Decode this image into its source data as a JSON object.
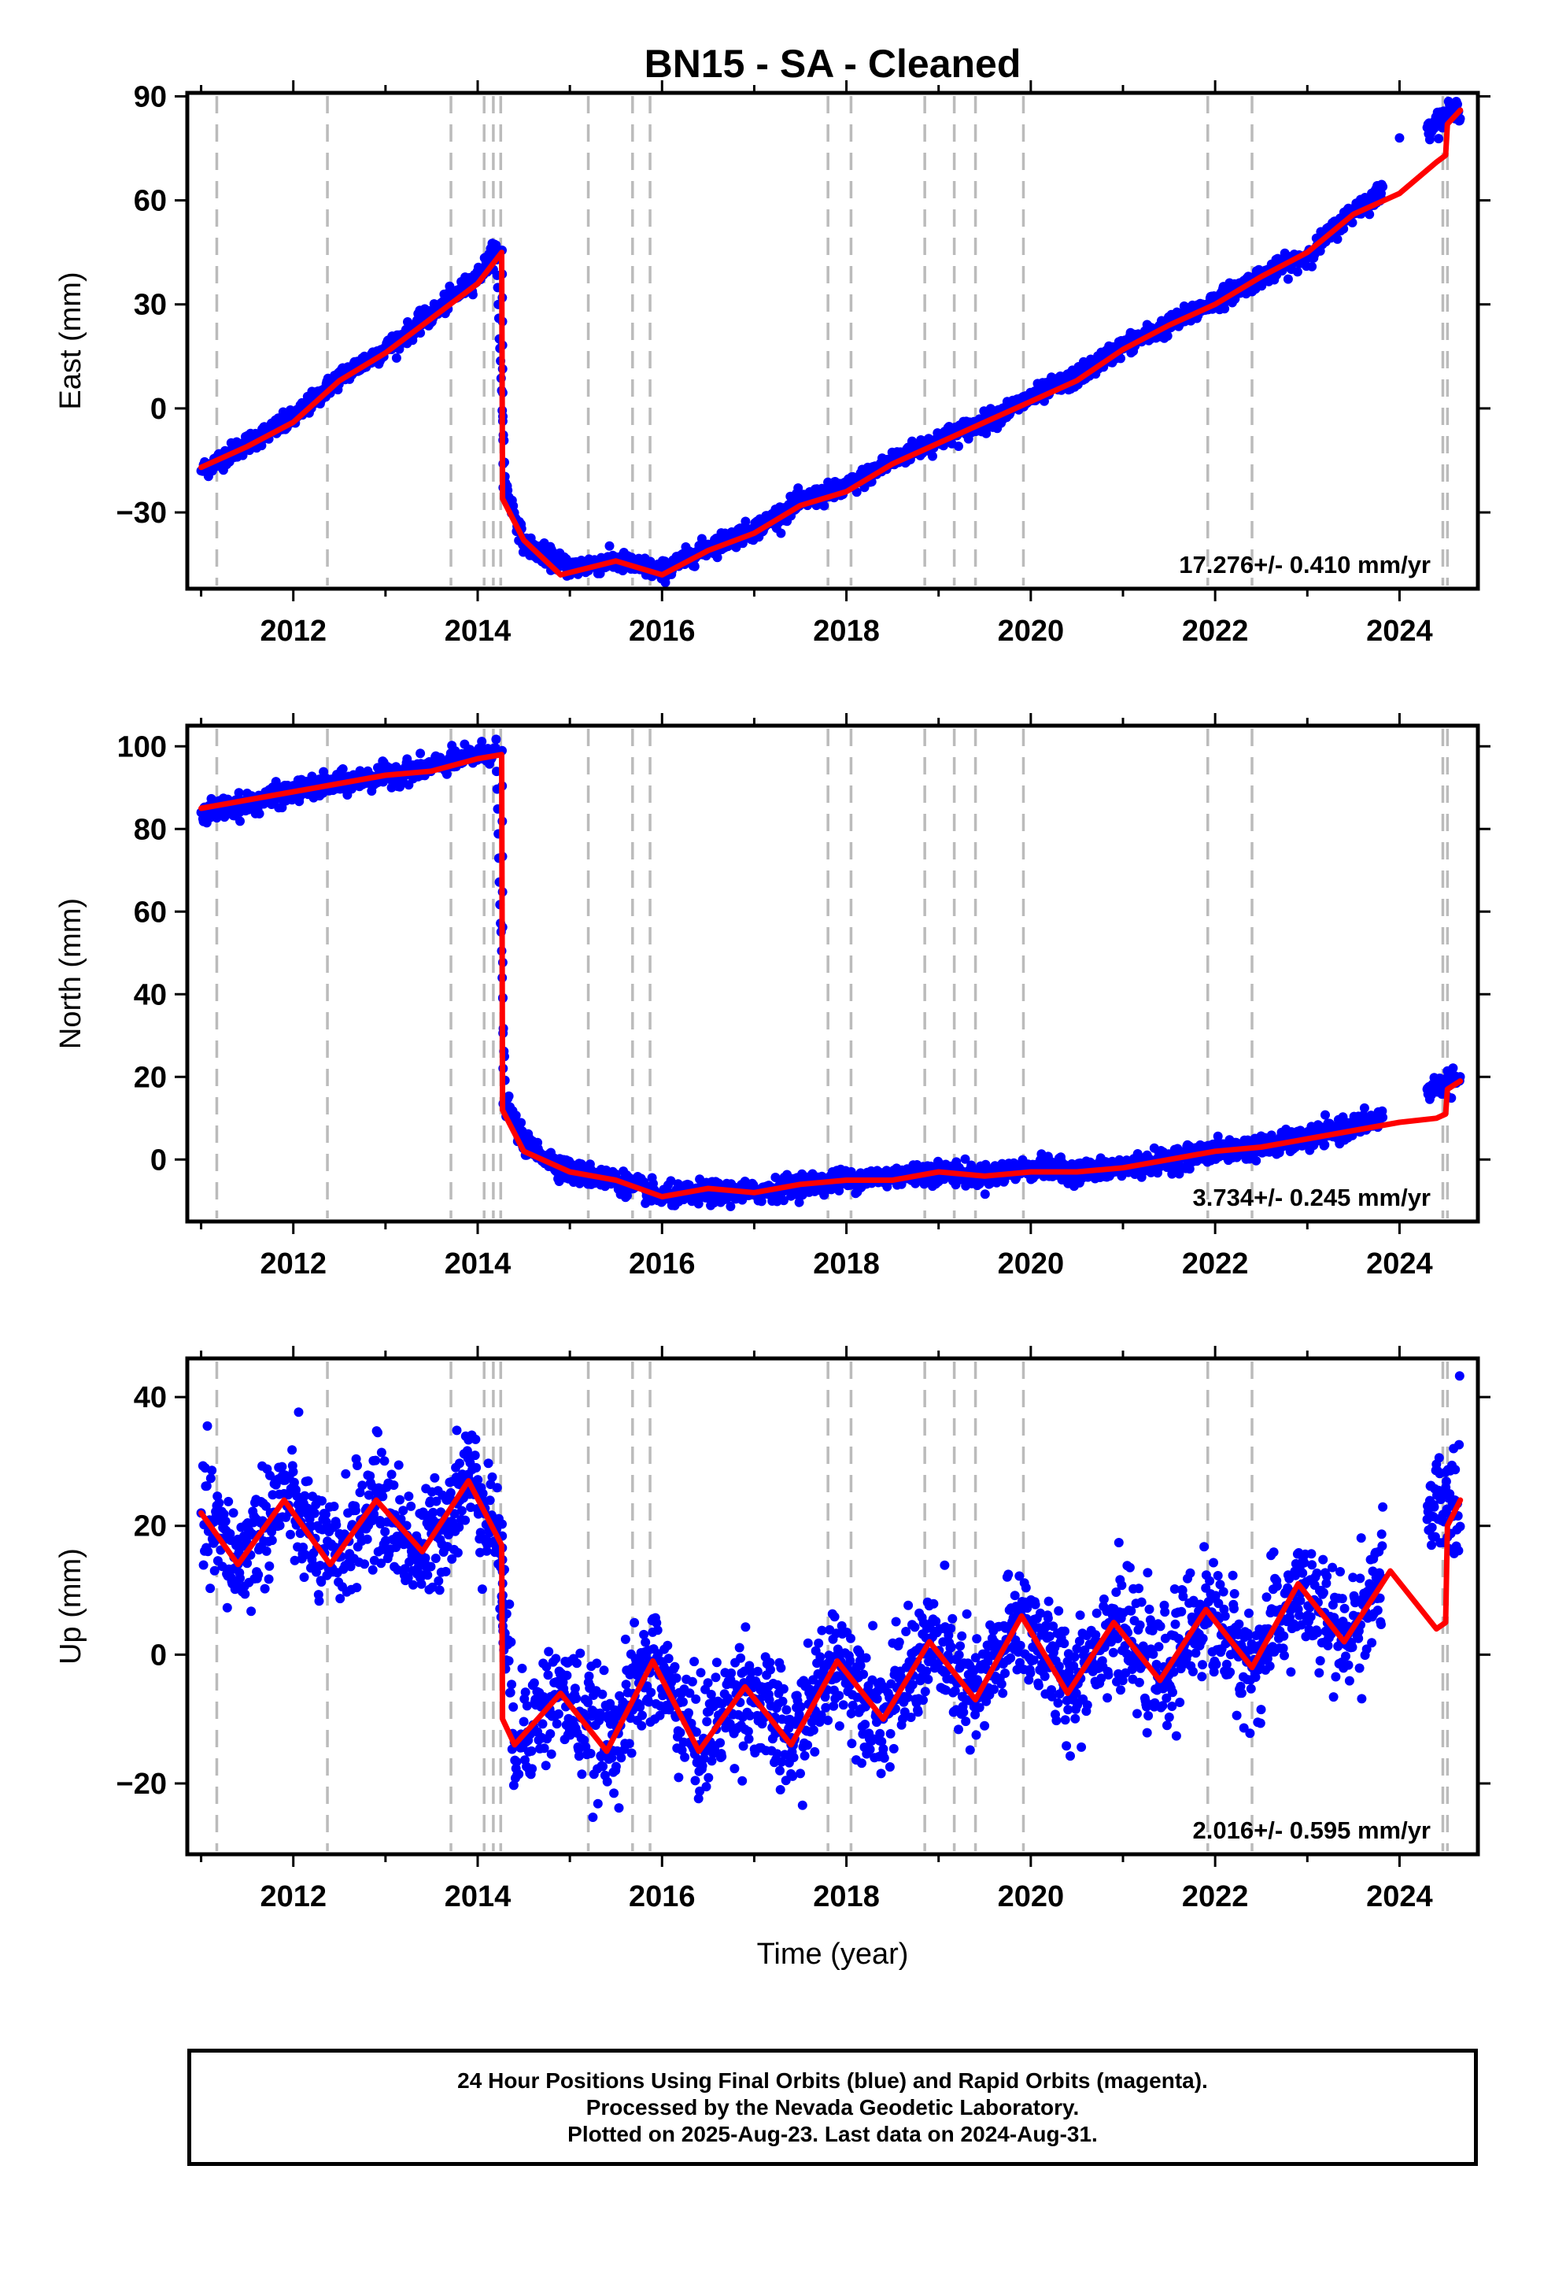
{
  "title": "BN15  - SA - Cleaned",
  "footer": {
    "line1": "24 Hour Positions Using Final Orbits (blue) and Rapid Orbits (magenta).",
    "line2": "Processed by the Nevada Geodetic Laboratory.",
    "line3": "Plotted on 2025-Aug-23. Last data on 2024-Aug-31."
  },
  "colors": {
    "data": "#0000ff",
    "model": "#ff0000",
    "event_lines": "#bbbbbb"
  },
  "chart_data": {
    "type": "scatter",
    "x_range": [
      2010.85,
      2024.85
    ],
    "x_ticks": [
      2012,
      2014,
      2016,
      2018,
      2020,
      2022,
      2024
    ],
    "xlabel": "Time (year)",
    "event_lines": [
      2011.17,
      2012.37,
      2013.71,
      2014.07,
      2014.17,
      2014.25,
      2015.2,
      2015.68,
      2015.87,
      2017.8,
      2018.05,
      2018.85,
      2019.17,
      2019.4,
      2019.92,
      2021.92,
      2022.4,
      2024.47,
      2024.52
    ],
    "offset_time": 2014.27,
    "data_end": 2024.66,
    "panels": [
      {
        "name": "East",
        "ylabel": "East (mm)",
        "ylim": [
          -52,
          91
        ],
        "y_ticks": [
          -30,
          0,
          30,
          60,
          90
        ],
        "rate": "17.276+/- 0.410 mm/yr",
        "noise": 1.4,
        "model": [
          [
            2011.0,
            -17
          ],
          [
            2011.5,
            -11
          ],
          [
            2012.0,
            -4
          ],
          [
            2012.5,
            8
          ],
          [
            2013.0,
            16
          ],
          [
            2013.5,
            26
          ],
          [
            2014.0,
            36
          ],
          [
            2014.26,
            45
          ],
          [
            2014.27,
            -26
          ],
          [
            2014.5,
            -38
          ],
          [
            2014.9,
            -48
          ],
          [
            2015.5,
            -44
          ],
          [
            2016.0,
            -48
          ],
          [
            2016.5,
            -41
          ],
          [
            2017.0,
            -36
          ],
          [
            2017.5,
            -28
          ],
          [
            2018.0,
            -24
          ],
          [
            2018.5,
            -16
          ],
          [
            2019.0,
            -10
          ],
          [
            2019.5,
            -4
          ],
          [
            2020.0,
            2
          ],
          [
            2020.5,
            8
          ],
          [
            2021.0,
            17
          ],
          [
            2021.5,
            24
          ],
          [
            2022.0,
            30
          ],
          [
            2022.5,
            38
          ],
          [
            2023.0,
            45
          ],
          [
            2023.5,
            56
          ],
          [
            2024.0,
            62
          ],
          [
            2024.4,
            71
          ],
          [
            2024.5,
            73
          ],
          [
            2024.52,
            82
          ],
          [
            2024.66,
            86
          ]
        ],
        "points": [
          [
            2011.0,
            -18
          ],
          [
            2011.5,
            -10
          ],
          [
            2012.0,
            -3
          ],
          [
            2012.5,
            9
          ],
          [
            2013.0,
            17
          ],
          [
            2013.5,
            27
          ],
          [
            2014.0,
            38
          ],
          [
            2014.2,
            46
          ],
          [
            2014.3,
            -22
          ],
          [
            2014.5,
            -39
          ],
          [
            2015.0,
            -46
          ],
          [
            2015.5,
            -44
          ],
          [
            2016.0,
            -47
          ],
          [
            2016.5,
            -40
          ],
          [
            2017.0,
            -35
          ],
          [
            2017.5,
            -27
          ],
          [
            2018.0,
            -23
          ],
          [
            2018.5,
            -15
          ],
          [
            2019.0,
            -9
          ],
          [
            2019.5,
            -4
          ],
          [
            2020.0,
            3
          ],
          [
            2020.5,
            9
          ],
          [
            2021.0,
            18
          ],
          [
            2021.5,
            24
          ],
          [
            2022.0,
            31
          ],
          [
            2022.5,
            38
          ],
          [
            2023.0,
            44
          ],
          [
            2023.5,
            57
          ],
          [
            2023.8,
            62
          ],
          [
            2024.0,
            78
          ],
          [
            2024.3,
            81
          ],
          [
            2024.6,
            86
          ]
        ]
      },
      {
        "name": "North",
        "ylabel": "North (mm)",
        "ylim": [
          -15,
          105
        ],
        "y_ticks": [
          0,
          20,
          40,
          60,
          80,
          100
        ],
        "rate": "3.734+/- 0.245 mm/yr",
        "noise": 1.3,
        "model": [
          [
            2011.0,
            85
          ],
          [
            2011.5,
            87
          ],
          [
            2012.0,
            89
          ],
          [
            2012.5,
            91
          ],
          [
            2013.0,
            93
          ],
          [
            2013.5,
            94
          ],
          [
            2014.0,
            97
          ],
          [
            2014.26,
            98
          ],
          [
            2014.27,
            12
          ],
          [
            2014.5,
            2
          ],
          [
            2015.0,
            -3
          ],
          [
            2015.5,
            -5
          ],
          [
            2016.0,
            -9
          ],
          [
            2016.5,
            -7
          ],
          [
            2017.0,
            -8
          ],
          [
            2017.5,
            -6
          ],
          [
            2018.0,
            -5
          ],
          [
            2018.5,
            -5
          ],
          [
            2019.0,
            -3
          ],
          [
            2019.5,
            -4
          ],
          [
            2020.0,
            -3
          ],
          [
            2020.5,
            -3
          ],
          [
            2021.0,
            -2
          ],
          [
            2021.5,
            0
          ],
          [
            2022.0,
            2
          ],
          [
            2022.5,
            3
          ],
          [
            2023.0,
            5
          ],
          [
            2023.5,
            7
          ],
          [
            2024.0,
            9
          ],
          [
            2024.4,
            10
          ],
          [
            2024.5,
            11
          ],
          [
            2024.52,
            17
          ],
          [
            2024.66,
            19
          ]
        ],
        "points": [
          [
            2011.0,
            84
          ],
          [
            2011.5,
            86
          ],
          [
            2012.0,
            89
          ],
          [
            2012.5,
            91
          ],
          [
            2013.0,
            93
          ],
          [
            2013.5,
            95
          ],
          [
            2014.0,
            98
          ],
          [
            2014.2,
            99
          ],
          [
            2014.3,
            14
          ],
          [
            2014.5,
            4
          ],
          [
            2015.0,
            -3
          ],
          [
            2015.5,
            -5
          ],
          [
            2016.0,
            -9
          ],
          [
            2016.5,
            -8
          ],
          [
            2017.0,
            -8
          ],
          [
            2017.5,
            -6
          ],
          [
            2018.0,
            -5
          ],
          [
            2018.5,
            -4
          ],
          [
            2019.0,
            -3
          ],
          [
            2019.5,
            -4
          ],
          [
            2020.0,
            -2
          ],
          [
            2020.5,
            -3
          ],
          [
            2021.0,
            -2
          ],
          [
            2021.5,
            0
          ],
          [
            2022.0,
            2
          ],
          [
            2022.5,
            3
          ],
          [
            2023.0,
            5
          ],
          [
            2023.5,
            8
          ],
          [
            2023.8,
            10
          ],
          [
            2024.3,
            17
          ],
          [
            2024.6,
            19
          ]
        ]
      },
      {
        "name": "Up",
        "ylabel": "Up (mm)",
        "ylim": [
          -31,
          46
        ],
        "y_ticks": [
          -20,
          0,
          20,
          40
        ],
        "rate": "2.016+/- 0.595 mm/yr",
        "noise": 4.5,
        "model": [
          [
            2011.0,
            22
          ],
          [
            2011.4,
            14
          ],
          [
            2011.9,
            24
          ],
          [
            2012.4,
            14
          ],
          [
            2012.9,
            24
          ],
          [
            2013.4,
            16
          ],
          [
            2013.9,
            27
          ],
          [
            2014.26,
            17
          ],
          [
            2014.27,
            -10
          ],
          [
            2014.4,
            -14
          ],
          [
            2014.9,
            -6
          ],
          [
            2015.4,
            -15
          ],
          [
            2015.9,
            -1
          ],
          [
            2016.4,
            -15
          ],
          [
            2016.9,
            -5
          ],
          [
            2017.4,
            -14
          ],
          [
            2017.9,
            -1
          ],
          [
            2018.4,
            -10
          ],
          [
            2018.9,
            2
          ],
          [
            2019.4,
            -7
          ],
          [
            2019.9,
            6
          ],
          [
            2020.4,
            -6
          ],
          [
            2020.9,
            5
          ],
          [
            2021.4,
            -4
          ],
          [
            2021.9,
            7
          ],
          [
            2022.4,
            -2
          ],
          [
            2022.9,
            11
          ],
          [
            2023.4,
            2
          ],
          [
            2023.9,
            13
          ],
          [
            2024.4,
            4
          ],
          [
            2024.5,
            5
          ],
          [
            2024.52,
            20
          ],
          [
            2024.66,
            24
          ]
        ],
        "points": [
          [
            2011.0,
            22
          ],
          [
            2011.4,
            14
          ],
          [
            2011.9,
            25
          ],
          [
            2012.4,
            14
          ],
          [
            2012.9,
            24
          ],
          [
            2013.4,
            15
          ],
          [
            2013.9,
            28
          ],
          [
            2014.2,
            20
          ],
          [
            2014.4,
            -13
          ],
          [
            2014.9,
            -6
          ],
          [
            2015.4,
            -14
          ],
          [
            2015.9,
            -1
          ],
          [
            2016.4,
            -14
          ],
          [
            2016.9,
            -5
          ],
          [
            2017.4,
            -14
          ],
          [
            2017.9,
            0
          ],
          [
            2018.4,
            -10
          ],
          [
            2018.9,
            2
          ],
          [
            2019.4,
            -7
          ],
          [
            2019.9,
            6
          ],
          [
            2020.4,
            -5
          ],
          [
            2020.9,
            5
          ],
          [
            2021.4,
            -4
          ],
          [
            2021.9,
            7
          ],
          [
            2022.4,
            -2
          ],
          [
            2022.9,
            10
          ],
          [
            2023.4,
            2
          ],
          [
            2023.8,
            12
          ],
          [
            2024.3,
            21
          ],
          [
            2024.6,
            24
          ]
        ]
      }
    ]
  }
}
